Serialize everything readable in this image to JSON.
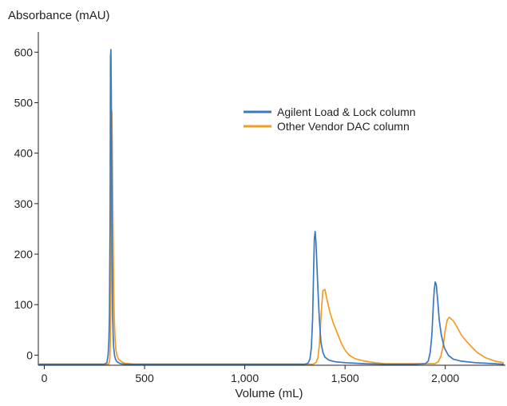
{
  "chart_data": {
    "type": "line",
    "ylabel": "Absorbance (mAU)",
    "xlabel": "Volume (mL)",
    "xlim": [
      -30,
      2300
    ],
    "ylim": [
      -20,
      640
    ],
    "xticks": [
      0,
      500,
      1000,
      1500,
      2000
    ],
    "xtick_labels": [
      "0",
      "500",
      "1,000",
      "1,500",
      "2,000"
    ],
    "yticks": [
      0,
      100,
      200,
      300,
      400,
      500,
      600
    ],
    "ytick_labels": [
      "0",
      "100",
      "200",
      "300",
      "400",
      "500",
      "600"
    ],
    "grid": false,
    "legend_position": "center-right",
    "series": [
      {
        "name": "Agilent Load & Lock column",
        "color": "#3b78c2",
        "x": [
          -30,
          300,
          312,
          318,
          322,
          325,
          328,
          330,
          332,
          334,
          336,
          338,
          340,
          343,
          346,
          350,
          355,
          360,
          370,
          380,
          400,
          450,
          600,
          1000,
          1300,
          1315,
          1325,
          1332,
          1338,
          1343,
          1347,
          1351,
          1355,
          1360,
          1366,
          1372,
          1380,
          1390,
          1400,
          1420,
          1450,
          1500,
          1600,
          1700,
          1850,
          1900,
          1915,
          1925,
          1933,
          1940,
          1945,
          1950,
          1955,
          1962,
          1970,
          1980,
          1995,
          2015,
          2040,
          2080,
          2150,
          2250,
          2290
        ],
        "y": [
          -18,
          -18,
          -15,
          0,
          30,
          80,
          280,
          590,
          605,
          520,
          350,
          200,
          90,
          40,
          15,
          0,
          -8,
          -12,
          -15,
          -17,
          -18,
          -18,
          -18,
          -18,
          -18,
          -16,
          -8,
          15,
          70,
          160,
          230,
          245,
          225,
          175,
          120,
          70,
          25,
          5,
          -4,
          -10,
          -13,
          -15,
          -17,
          -18,
          -18,
          -17,
          -12,
          5,
          40,
          95,
          130,
          145,
          140,
          110,
          70,
          40,
          15,
          0,
          -8,
          -12,
          -15,
          -17,
          -18
        ]
      },
      {
        "name": "Other Vendor DAC column",
        "color": "#f39c1f",
        "x": [
          -30,
          320,
          326,
          329,
          331,
          333,
          335,
          337,
          339,
          341,
          343,
          345,
          347,
          350,
          353,
          357,
          362,
          370,
          385,
          400,
          450,
          600,
          1000,
          1340,
          1355,
          1365,
          1372,
          1378,
          1384,
          1390,
          1400,
          1410,
          1425,
          1440,
          1460,
          1480,
          1500,
          1520,
          1550,
          1600,
          1650,
          1700,
          1950,
          1965,
          1978,
          1990,
          2000,
          2010,
          2020,
          2040,
          2060,
          2080,
          2100,
          2130,
          2160,
          2200,
          2250,
          2290
        ],
        "y": [
          -18,
          -18,
          -10,
          20,
          80,
          200,
          400,
          483,
          420,
          330,
          240,
          160,
          100,
          60,
          30,
          10,
          0,
          -8,
          -13,
          -16,
          -18,
          -18,
          -18,
          -18,
          -15,
          -5,
          20,
          60,
          100,
          128,
          130,
          110,
          85,
          65,
          45,
          25,
          10,
          0,
          -7,
          -12,
          -15,
          -17,
          -17,
          -13,
          -2,
          20,
          50,
          70,
          75,
          68,
          55,
          40,
          30,
          17,
          5,
          -5,
          -12,
          -15
        ]
      }
    ]
  }
}
